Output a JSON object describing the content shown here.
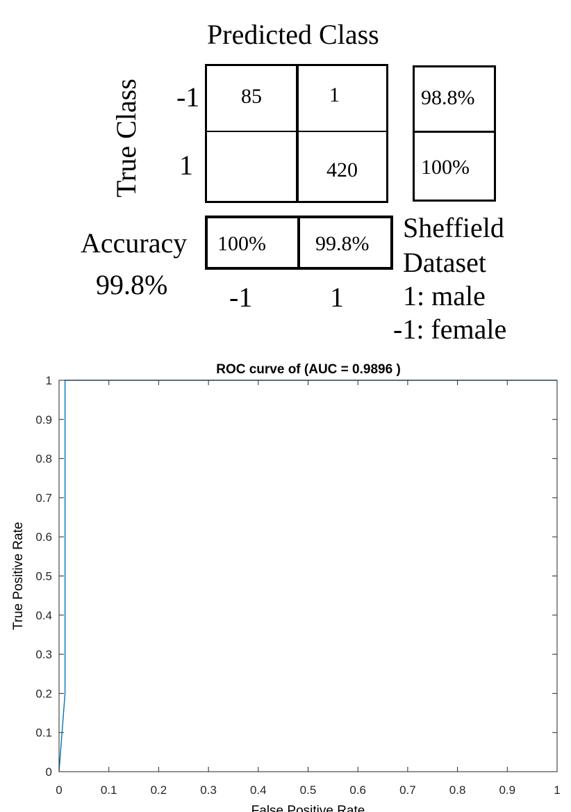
{
  "confusion_matrix": {
    "title": "Predicted Class",
    "ylabel": "True Class",
    "row_labels": [
      "-1",
      "1"
    ],
    "col_labels": [
      "-1",
      "1"
    ],
    "cells": [
      [
        "85",
        "1"
      ],
      [
        "",
        "420"
      ]
    ],
    "row_rates": [
      "98.8%",
      "100%"
    ],
    "col_rates": [
      "100%",
      "99.8%"
    ],
    "accuracy_label": "Accuracy",
    "accuracy_value": "99.8%",
    "legend_lines": [
      "Sheffield",
      "Dataset",
      "1: male",
      "-1: female"
    ]
  },
  "chart_data": {
    "type": "line",
    "title": "ROC curve of (AUC = 0.9896 )",
    "xlabel": "False Positive Rate",
    "ylabel": "True Positive Rate",
    "xlim": [
      0,
      1
    ],
    "ylim": [
      0,
      1
    ],
    "xticks": [
      "0",
      "0.1",
      "0.2",
      "0.3",
      "0.4",
      "0.5",
      "0.6",
      "0.7",
      "0.8",
      "0.9",
      "1"
    ],
    "yticks": [
      "0",
      "0.1",
      "0.2",
      "0.3",
      "0.4",
      "0.5",
      "0.6",
      "0.7",
      "0.8",
      "0.9",
      "1"
    ],
    "grid": false,
    "line_color": "#0072BD",
    "series": [
      {
        "x": [
          0,
          0.012,
          0.012,
          1
        ],
        "y": [
          0,
          0.2,
          1,
          1
        ]
      }
    ]
  }
}
